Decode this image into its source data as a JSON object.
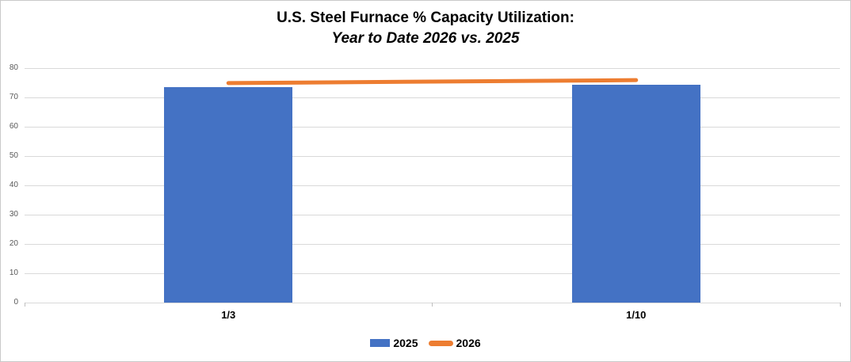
{
  "chart_data": {
    "type": "bar",
    "title": "U.S. Steel Furnace % Capacity Utilization:",
    "subtitle": "Year to Date 2026 vs. 2025",
    "categories": [
      "1/3",
      "1/10"
    ],
    "series": [
      {
        "name": "2025",
        "type": "bar",
        "color": "#4472C4",
        "values": [
          73.5,
          74.3
        ]
      },
      {
        "name": "2026",
        "type": "line",
        "color": "#ED7D31",
        "values": [
          74.9,
          75.9
        ]
      }
    ],
    "ylim": [
      0,
      80
    ],
    "ytick_interval": 10,
    "ytick_labels": [
      "0",
      "10",
      "20",
      "30",
      "40",
      "50",
      "60",
      "70",
      "80"
    ],
    "grid": true,
    "gridline_color": "#D9D9D9",
    "axis_label_color": "#595959",
    "legend_position": "bottom"
  }
}
